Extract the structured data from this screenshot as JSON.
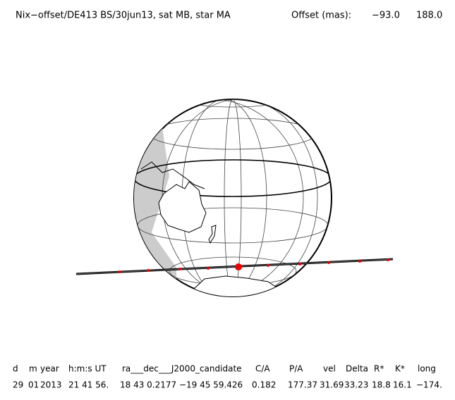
{
  "header": {
    "title": "Nix−offset/DE413 BS/30jun13, sat MB, star MA",
    "offset_label": "Offset (mas):",
    "offset_x": "−93.0",
    "offset_y": "188.0"
  },
  "table": {
    "columns": [
      "d",
      "m",
      "year",
      "h:m:s UT",
      "ra___dec___J2000_candidate",
      "C/A",
      "P/A",
      "vel",
      "Delta",
      "R*",
      "K*",
      "long"
    ],
    "rows": [
      [
        "29",
        "01",
        "2013",
        "21 41 56.",
        "18 43  0.2177 −19 45 59.426",
        "0.182",
        "177.37",
        "31.69",
        "33.23",
        "18.8",
        "16.1",
        "−174."
      ]
    ]
  }
}
